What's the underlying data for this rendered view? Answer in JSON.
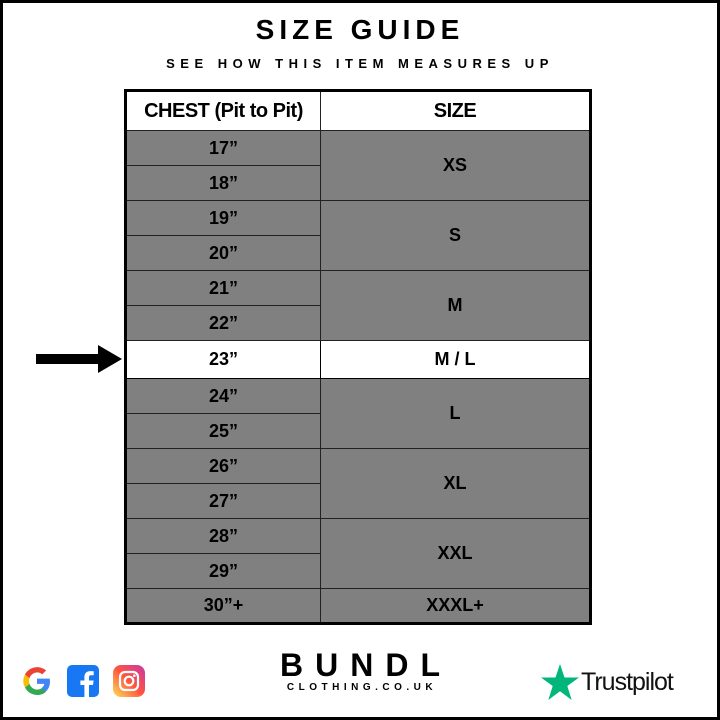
{
  "title": "SIZE GUIDE",
  "subtitle": "SEE HOW THIS ITEM MEASURES UP",
  "table": {
    "headers": [
      "CHEST (Pit to Pit)",
      "SIZE"
    ],
    "groups": [
      {
        "size": "XS",
        "chest": [
          "17”",
          "18”"
        ]
      },
      {
        "size": "S",
        "chest": [
          "19”",
          "20”"
        ]
      },
      {
        "size": "M",
        "chest": [
          "21”",
          "22”"
        ]
      },
      {
        "size": "M / L",
        "chest": [
          "23”"
        ],
        "highlighted": true
      },
      {
        "size": "L",
        "chest": [
          "24”",
          "25”"
        ]
      },
      {
        "size": "XL",
        "chest": [
          "26”",
          "27”"
        ]
      },
      {
        "size": "XXL",
        "chest": [
          "28”",
          "29”"
        ]
      },
      {
        "size": "XXXL+",
        "chest": [
          "30”+"
        ]
      }
    ]
  },
  "colors": {
    "row_fill": "#808080",
    "highlight_fill": "#ffffff",
    "trustpilot_green": "#00b67a"
  },
  "footer": {
    "social_icons": [
      "google-icon",
      "facebook-icon",
      "instagram-icon"
    ],
    "brand": "BUNDL",
    "brand_sub": "CLOTHING.CO.UK",
    "trustpilot": "Trustpilot"
  }
}
